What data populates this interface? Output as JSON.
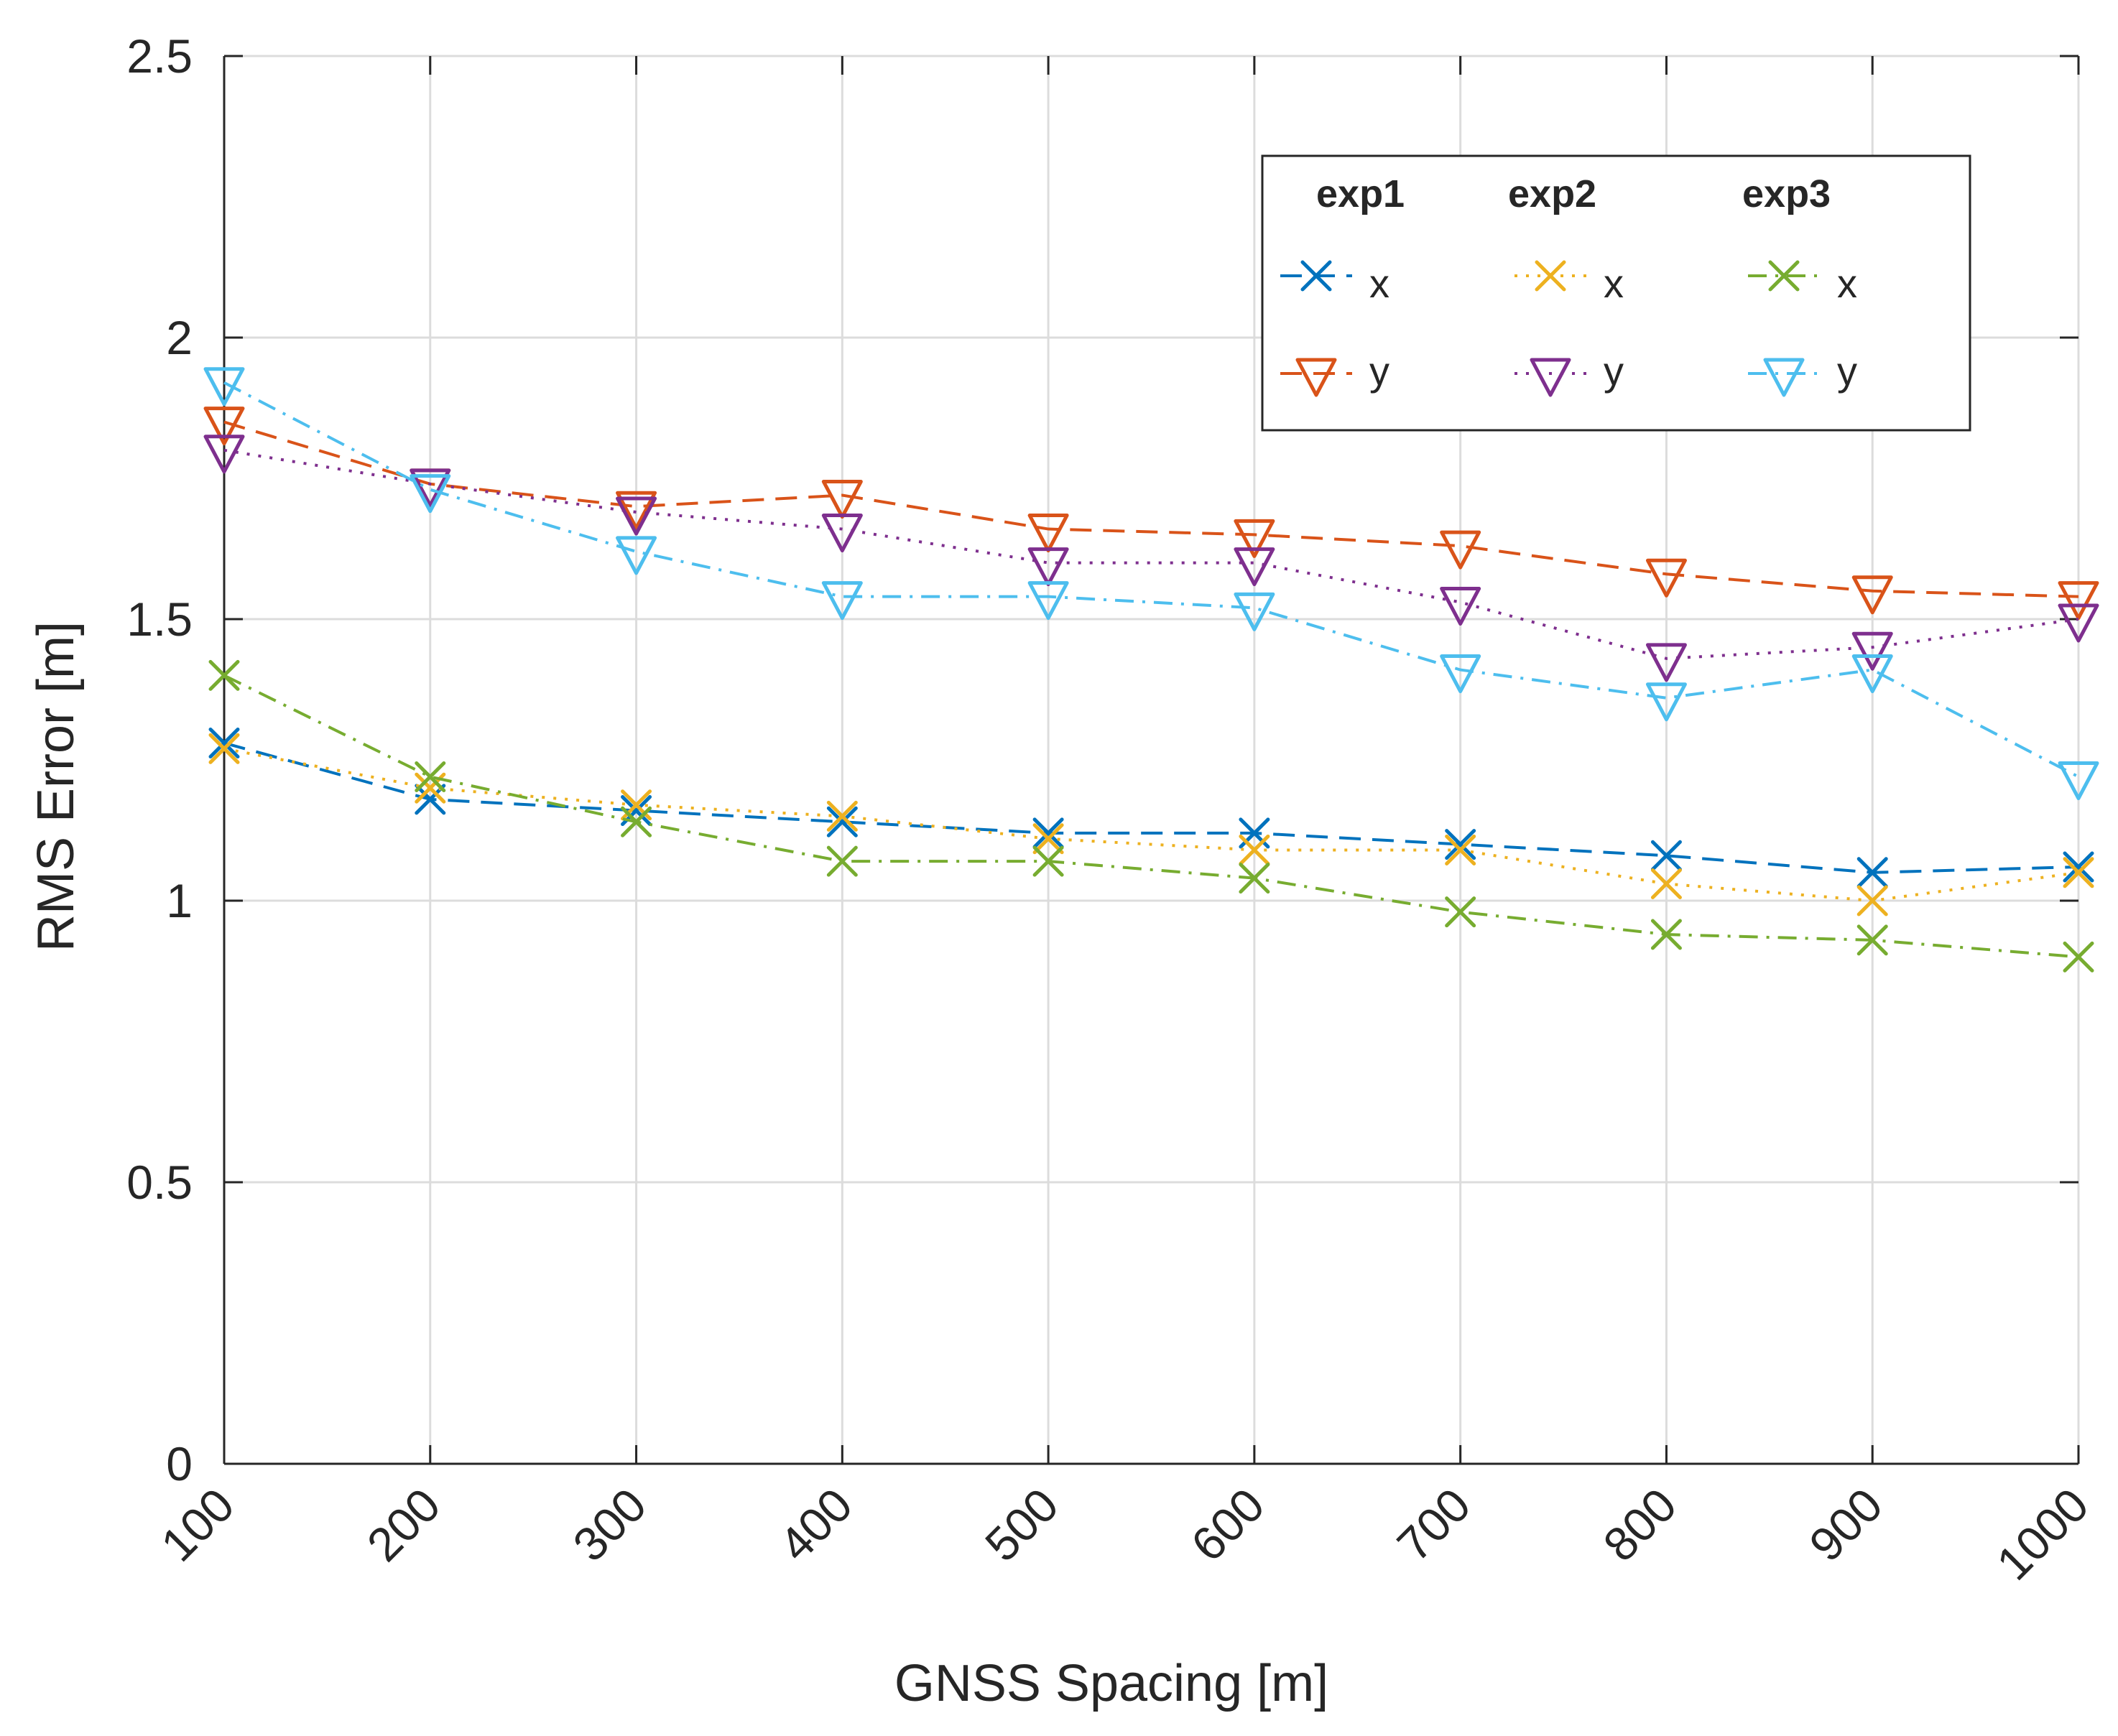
{
  "chart_data": {
    "type": "line",
    "title": "",
    "xlabel": "GNSS Spacing [m]",
    "ylabel": "RMS Error [m]",
    "x": [
      100,
      200,
      300,
      400,
      500,
      600,
      700,
      800,
      900,
      1000
    ],
    "x_tick_labels": [
      "100",
      "200",
      "300",
      "400",
      "500",
      "600",
      "700",
      "800",
      "900",
      "1000"
    ],
    "y_ticks": [
      0,
      0.5,
      1,
      1.5,
      2,
      2.5
    ],
    "y_tick_labels": [
      "0",
      "0.5",
      "1",
      "1.5",
      "2",
      "2.5"
    ],
    "xlim": [
      100,
      1000
    ],
    "ylim": [
      0,
      2.5
    ],
    "grid": true,
    "legend_position": "top-right",
    "legend_groups": [
      "exp1",
      "exp2",
      "exp3"
    ],
    "series": [
      {
        "name": "x",
        "group": "exp1",
        "color": "#0072bd",
        "marker": "cross",
        "linestyle": "dashed",
        "values": [
          1.28,
          1.18,
          1.16,
          1.14,
          1.12,
          1.12,
          1.1,
          1.08,
          1.05,
          1.06
        ]
      },
      {
        "name": "y",
        "group": "exp1",
        "color": "#d95319",
        "marker": "triangle-down",
        "linestyle": "dashed",
        "values": [
          1.85,
          1.74,
          1.7,
          1.72,
          1.66,
          1.65,
          1.63,
          1.58,
          1.55,
          1.54
        ]
      },
      {
        "name": "x",
        "group": "exp2",
        "color": "#edb120",
        "marker": "cross",
        "linestyle": "dotted",
        "values": [
          1.27,
          1.2,
          1.17,
          1.15,
          1.11,
          1.09,
          1.09,
          1.03,
          1.0,
          1.05
        ]
      },
      {
        "name": "y",
        "group": "exp2",
        "color": "#7e2f8e",
        "marker": "triangle-down",
        "linestyle": "dotted",
        "values": [
          1.8,
          1.74,
          1.69,
          1.66,
          1.6,
          1.6,
          1.53,
          1.43,
          1.45,
          1.5
        ]
      },
      {
        "name": "x",
        "group": "exp3",
        "color": "#77ac30",
        "marker": "cross",
        "linestyle": "dashdot",
        "values": [
          1.4,
          1.22,
          1.14,
          1.07,
          1.07,
          1.04,
          0.98,
          0.94,
          0.93,
          0.9
        ]
      },
      {
        "name": "y",
        "group": "exp3",
        "color": "#4dbeee",
        "marker": "triangle-down",
        "linestyle": "dashdot",
        "values": [
          1.92,
          1.73,
          1.62,
          1.54,
          1.54,
          1.52,
          1.41,
          1.36,
          1.41,
          1.22
        ]
      }
    ]
  }
}
